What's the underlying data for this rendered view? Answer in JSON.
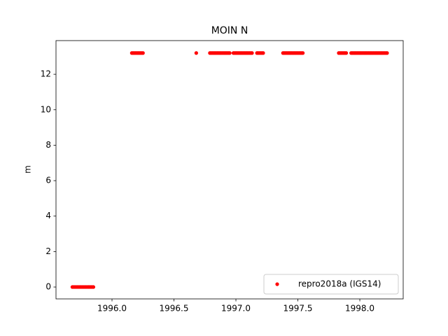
{
  "chart_data": {
    "type": "scatter",
    "title": "MOIN N",
    "ylabel": "m",
    "legend": "lower right",
    "xlim": [
      1995.548,
      1998.35
    ],
    "ylim": [
      -0.67,
      13.9
    ],
    "xticks": [
      {
        "value": 1996,
        "label": "1996.0"
      },
      {
        "value": 1996.5,
        "label": "1996.5"
      },
      {
        "value": 1997,
        "label": "1997.0"
      },
      {
        "value": 1997.5,
        "label": "1997.5"
      },
      {
        "value": 1998,
        "label": "1998.0"
      }
    ],
    "yticks": [
      0,
      2,
      4,
      6,
      8,
      10,
      12
    ],
    "series": [
      {
        "name": "repro2018a (IGS14)",
        "color": "#ff0000",
        "x": [
          1995.68,
          1995.69,
          1995.7,
          1995.71,
          1995.72,
          1995.73,
          1995.74,
          1995.75,
          1995.76,
          1995.77,
          1995.78,
          1995.79,
          1995.8,
          1995.81,
          1995.82,
          1995.83,
          1995.84,
          1995.85,
          1996.16,
          1996.17,
          1996.18,
          1996.19,
          1996.2,
          1996.21,
          1996.22,
          1996.23,
          1996.24,
          1996.25,
          1996.68,
          1996.79,
          1996.8,
          1996.81,
          1996.82,
          1996.83,
          1996.84,
          1996.85,
          1996.86,
          1996.87,
          1996.88,
          1996.89,
          1996.9,
          1996.91,
          1996.92,
          1996.93,
          1996.94,
          1996.95,
          1996.98,
          1996.99,
          1997,
          1997.01,
          1997.02,
          1997.03,
          1997.04,
          1997.05,
          1997.06,
          1997.07,
          1997.08,
          1997.09,
          1997.1,
          1997.11,
          1997.12,
          1997.13,
          1997.17,
          1997.18,
          1997.19,
          1997.2,
          1997.21,
          1997.22,
          1997.38,
          1997.39,
          1997.4,
          1997.41,
          1997.42,
          1997.43,
          1997.44,
          1997.45,
          1997.46,
          1997.47,
          1997.48,
          1997.49,
          1997.5,
          1997.51,
          1997.52,
          1997.53,
          1997.54,
          1997.83,
          1997.84,
          1997.85,
          1997.86,
          1997.87,
          1997.88,
          1997.89,
          1997.93,
          1997.94,
          1997.95,
          1997.96,
          1997.97,
          1997.98,
          1997.99,
          1998,
          1998.01,
          1998.02,
          1998.03,
          1998.04,
          1998.05,
          1998.06,
          1998.07,
          1998.08,
          1998.09,
          1998.1,
          1998.11,
          1998.12,
          1998.13,
          1998.14,
          1998.15,
          1998.16,
          1998.17,
          1998.18,
          1998.19,
          1998.2,
          1998.21,
          1998.22
        ],
        "values": [
          0,
          0,
          0,
          0,
          0,
          0,
          0,
          0,
          0,
          0,
          0,
          0,
          0,
          0,
          0,
          0,
          0,
          0,
          13.2,
          13.2,
          13.2,
          13.2,
          13.2,
          13.2,
          13.2,
          13.2,
          13.2,
          13.2,
          13.2,
          13.2,
          13.2,
          13.2,
          13.2,
          13.2,
          13.2,
          13.2,
          13.2,
          13.2,
          13.2,
          13.2,
          13.2,
          13.2,
          13.2,
          13.2,
          13.2,
          13.2,
          13.2,
          13.2,
          13.2,
          13.2,
          13.2,
          13.2,
          13.2,
          13.2,
          13.2,
          13.2,
          13.2,
          13.2,
          13.2,
          13.2,
          13.2,
          13.2,
          13.2,
          13.2,
          13.2,
          13.2,
          13.2,
          13.2,
          13.2,
          13.2,
          13.2,
          13.2,
          13.2,
          13.2,
          13.2,
          13.2,
          13.2,
          13.2,
          13.2,
          13.2,
          13.2,
          13.2,
          13.2,
          13.2,
          13.2,
          13.2,
          13.2,
          13.2,
          13.2,
          13.2,
          13.2,
          13.2,
          13.2,
          13.2,
          13.2,
          13.2,
          13.2,
          13.2,
          13.2,
          13.2,
          13.2,
          13.2,
          13.2,
          13.2,
          13.2,
          13.2,
          13.2,
          13.2,
          13.2,
          13.2,
          13.2,
          13.2,
          13.2,
          13.2,
          13.2,
          13.2,
          13.2,
          13.2,
          13.2,
          13.2,
          13.2,
          13.2
        ]
      }
    ]
  }
}
